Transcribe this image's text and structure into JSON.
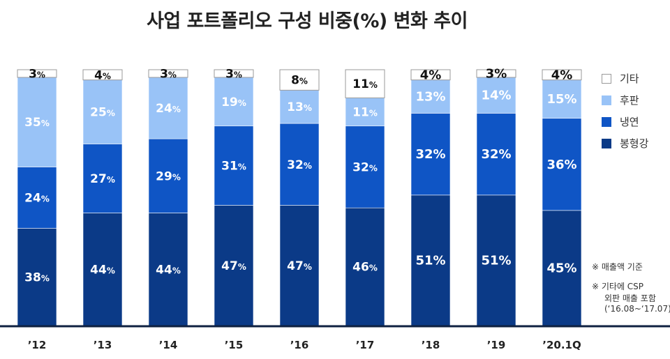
{
  "title": "사업 포트폴리오 구성 비중(%) 변화 추이",
  "chart_data": {
    "type": "bar",
    "stacked": true,
    "categories": [
      "’12",
      "’13",
      "’14",
      "’15",
      "’16",
      "’17",
      "’18",
      "’19",
      "’20.1Q"
    ],
    "series": [
      {
        "name": "봉형강",
        "color": "#0b3a87",
        "values": [
          38,
          44,
          44,
          47,
          47,
          46,
          51,
          51,
          45
        ]
      },
      {
        "name": "냉연",
        "color": "#0f55c5",
        "values": [
          24,
          27,
          29,
          31,
          32,
          32,
          32,
          32,
          36
        ]
      },
      {
        "name": "후판",
        "color": "#99c3f7",
        "values": [
          35,
          25,
          24,
          19,
          13,
          11,
          13,
          14,
          15
        ]
      },
      {
        "name": "기타",
        "color": "#ffffff",
        "values": [
          3,
          4,
          3,
          3,
          8,
          11,
          4,
          3,
          4
        ]
      }
    ],
    "unit": "%",
    "ylim": [
      0,
      100
    ],
    "legend_position": "right"
  },
  "legend": [
    {
      "label": "기타",
      "color": "#ffffff"
    },
    {
      "label": "후판",
      "color": "#99c3f7"
    },
    {
      "label": "냉연",
      "color": "#0f55c5"
    },
    {
      "label": "봉형강",
      "color": "#0b3a87"
    }
  ],
  "notes": {
    "note1": "※ 매출액 기준",
    "note2_line1": "※ 기타에 CSP",
    "note2_line2": "외판 매출 포함",
    "note2_line3": "(‘16.08~‘17.07)"
  }
}
